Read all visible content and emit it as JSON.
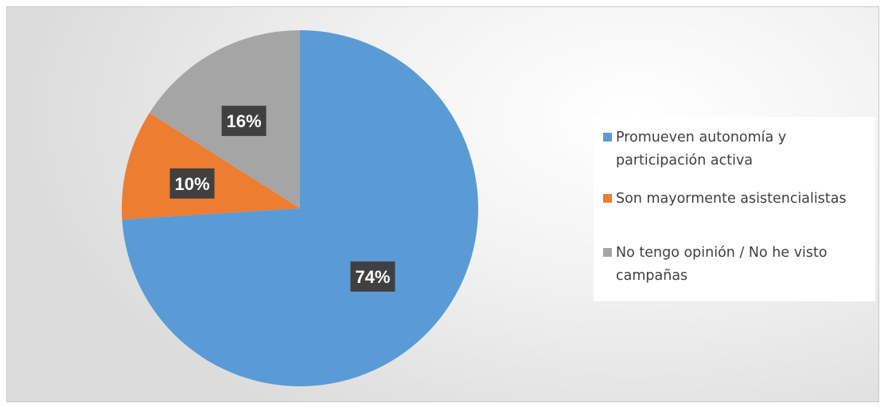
{
  "chart_data": {
    "type": "pie",
    "title": "",
    "categories": [
      "Promueven autonomía y participación activa",
      "Son mayormente asistencialistas",
      "No tengo opinión / No he visto campañas"
    ],
    "values": [
      74,
      10,
      16
    ],
    "data_labels": [
      "74%",
      "10%",
      "16%"
    ],
    "colors": [
      "#5b9bd5",
      "#ed7d31",
      "#a5a5a5"
    ],
    "legend_position": "right"
  }
}
